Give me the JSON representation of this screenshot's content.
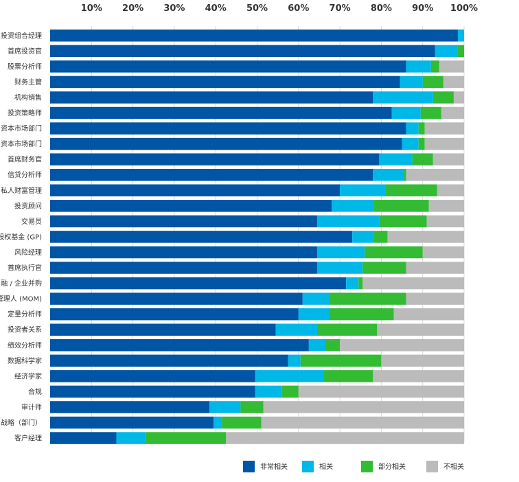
{
  "chart_data": {
    "type": "bar",
    "orientation": "horizontal",
    "stacked": true,
    "title": "",
    "xlabel": "",
    "ylabel": "",
    "xlim": [
      0,
      100
    ],
    "x_ticks": [
      "10%",
      "20%",
      "30%",
      "40%",
      "50%",
      "60%",
      "70%",
      "80%",
      "90%",
      "100%"
    ],
    "legend_position": "bottom-right",
    "categories": [
      "投资组合经理",
      "首席投资官",
      "股票分析师",
      "财务主管",
      "机构销售",
      "投资策略师",
      "资本市场部门",
      "资本市场部门",
      "首席财务官",
      "信贷分析师",
      "私人财富管理",
      "投资顾问",
      "交易员",
      "股权基金 (GP)",
      "风险经理",
      "首席执行官",
      "融 / 企业并购",
      "管理人 (MOM)",
      "定量分析师",
      "投资者关系",
      "绩效分析师",
      "数据科学家",
      "经济学家",
      "合规",
      "审计师",
      "与战略（部门）",
      "客户经理"
    ],
    "series": [
      {
        "name": "非常相关",
        "color": "#0055A5",
        "values": [
          98.5,
          93,
          86,
          84.5,
          78,
          82.5,
          86,
          85,
          79.5,
          78,
          70,
          68,
          64.5,
          73,
          64.5,
          64.5,
          71.5,
          61,
          60,
          54.5,
          62.5,
          57.5,
          49.5,
          49.5,
          38.5,
          39.5,
          16
        ]
      },
      {
        "name": "相关",
        "color": "#00B8E8",
        "values": [
          1.5,
          5.5,
          6,
          5.5,
          14.5,
          7,
          3,
          4,
          8,
          7.5,
          11,
          10,
          15,
          5,
          11.5,
          11,
          3,
          6.5,
          7.5,
          10,
          4,
          3,
          16.5,
          6.5,
          7.5,
          2,
          7
        ]
      },
      {
        "name": "部分相关",
        "color": "#33BB33",
        "values": [
          0,
          1.5,
          2,
          5,
          5,
          5,
          1.5,
          1.5,
          5,
          0.5,
          12.5,
          13.5,
          11.5,
          3.5,
          14,
          10.5,
          1,
          18.5,
          15.5,
          14.5,
          3.5,
          19.5,
          12,
          4,
          5.5,
          9.5,
          19.5
        ]
      },
      {
        "name": "不相关",
        "color": "#BBBBBB",
        "values": [
          0,
          0,
          6,
          5,
          2.5,
          5.5,
          9.5,
          9.5,
          7.5,
          14,
          6.5,
          8.5,
          9,
          18.5,
          10,
          14,
          24.5,
          14,
          17,
          21,
          30,
          20,
          22,
          40,
          48.5,
          49,
          57.5
        ]
      }
    ]
  }
}
